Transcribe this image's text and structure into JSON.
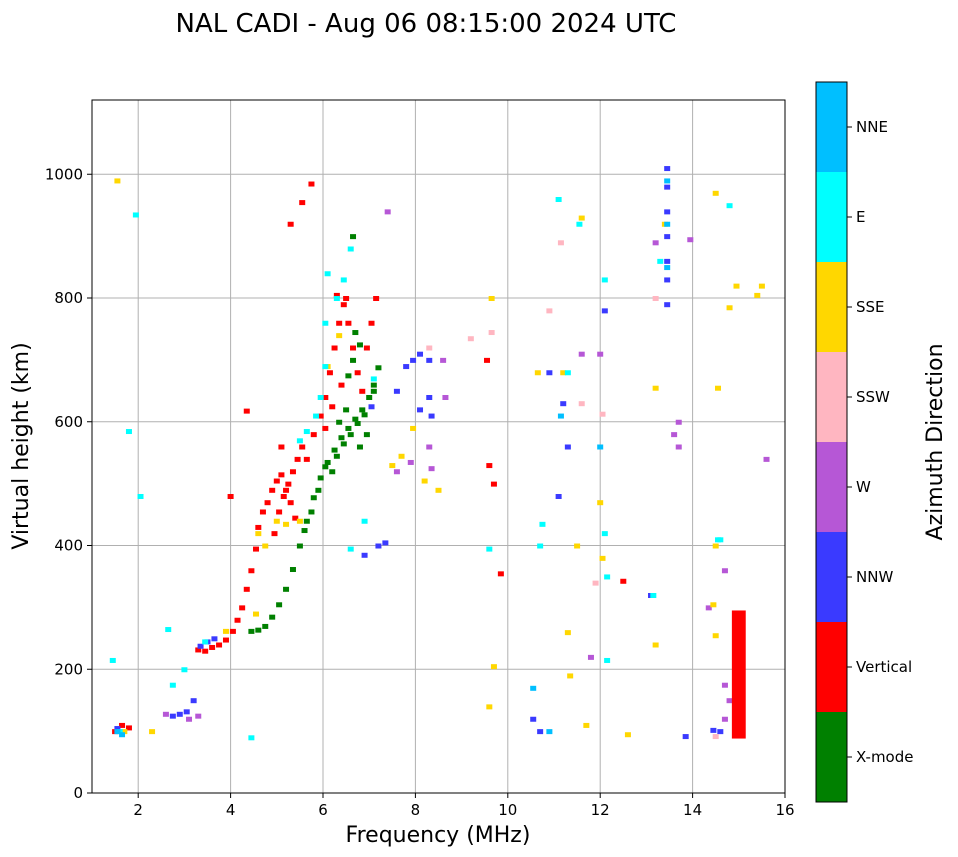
{
  "chart_data": {
    "type": "scatter",
    "title": "NAL CADI - Aug 06 08:15:00 2024 UTC",
    "xlabel": "Frequency (MHz)",
    "ylabel": "Virtual height (km)",
    "xlim": [
      1,
      16
    ],
    "ylim": [
      0,
      1120
    ],
    "xticks": [
      2,
      4,
      6,
      8,
      10,
      12,
      14,
      16
    ],
    "yticks": [
      0,
      200,
      400,
      600,
      800,
      1000
    ],
    "grid": true,
    "colorbar": {
      "label": "Azimuth Direction",
      "position": "right",
      "categories": [
        {
          "name": "X-mode",
          "color": "#008000"
        },
        {
          "name": "Vertical",
          "color": "#ff0000"
        },
        {
          "name": "NNW",
          "color": "#3a3aff"
        },
        {
          "name": "W",
          "color": "#b657d6"
        },
        {
          "name": "SSW",
          "color": "#ffb6c1"
        },
        {
          "name": "SSE",
          "color": "#ffd700"
        },
        {
          "name": "E",
          "color": "#00ffff"
        },
        {
          "name": "NNE",
          "color": "#00bfff"
        }
      ]
    },
    "series": [
      {
        "name": "X-mode",
        "points": [
          [
            4.45,
            262
          ],
          [
            4.6,
            264
          ],
          [
            4.75,
            270
          ],
          [
            4.9,
            285
          ],
          [
            5.05,
            305
          ],
          [
            5.2,
            330
          ],
          [
            5.35,
            362
          ],
          [
            5.5,
            400
          ],
          [
            5.65,
            440
          ],
          [
            5.8,
            478
          ],
          [
            5.95,
            510
          ],
          [
            6.1,
            535
          ],
          [
            6.25,
            555
          ],
          [
            6.4,
            575
          ],
          [
            6.55,
            590
          ],
          [
            6.7,
            605
          ],
          [
            6.85,
            620
          ],
          [
            7.0,
            640
          ],
          [
            7.1,
            660
          ],
          [
            6.2,
            520
          ],
          [
            6.3,
            545
          ],
          [
            6.45,
            565
          ],
          [
            6.6,
            580
          ],
          [
            6.75,
            598
          ],
          [
            6.9,
            612
          ],
          [
            6.55,
            675
          ],
          [
            6.65,
            700
          ],
          [
            6.7,
            745
          ],
          [
            6.8,
            725
          ],
          [
            6.65,
            900
          ],
          [
            7.1,
            650
          ],
          [
            7.2,
            688
          ],
          [
            5.6,
            425
          ],
          [
            5.75,
            455
          ],
          [
            5.9,
            490
          ],
          [
            6.05,
            528
          ],
          [
            6.35,
            600
          ],
          [
            6.5,
            620
          ],
          [
            6.8,
            560
          ],
          [
            6.95,
            580
          ]
        ]
      },
      {
        "name": "Vertical",
        "points": [
          [
            1.5,
            100
          ],
          [
            1.65,
            110
          ],
          [
            1.8,
            106
          ],
          [
            3.3,
            232
          ],
          [
            3.45,
            230
          ],
          [
            3.6,
            236
          ],
          [
            3.75,
            240
          ],
          [
            3.9,
            248
          ],
          [
            4.05,
            262
          ],
          [
            4.15,
            280
          ],
          [
            4.25,
            300
          ],
          [
            4.35,
            330
          ],
          [
            4.45,
            360
          ],
          [
            4.55,
            395
          ],
          [
            4.6,
            430
          ],
          [
            4.7,
            455
          ],
          [
            4.8,
            470
          ],
          [
            4.9,
            490
          ],
          [
            5.0,
            505
          ],
          [
            5.1,
            515
          ],
          [
            5.2,
            490
          ],
          [
            5.3,
            470
          ],
          [
            5.4,
            445
          ],
          [
            5.05,
            455
          ],
          [
            5.15,
            480
          ],
          [
            5.25,
            500
          ],
          [
            5.35,
            520
          ],
          [
            5.45,
            540
          ],
          [
            5.55,
            560
          ],
          [
            5.65,
            540
          ],
          [
            5.8,
            580
          ],
          [
            5.95,
            610
          ],
          [
            6.05,
            640
          ],
          [
            6.15,
            680
          ],
          [
            6.25,
            720
          ],
          [
            6.35,
            760
          ],
          [
            6.45,
            790
          ],
          [
            6.55,
            760
          ],
          [
            6.65,
            720
          ],
          [
            6.75,
            680
          ],
          [
            6.85,
            650
          ],
          [
            6.95,
            720
          ],
          [
            7.05,
            760
          ],
          [
            7.15,
            800
          ],
          [
            6.05,
            590
          ],
          [
            6.2,
            625
          ],
          [
            6.4,
            660
          ],
          [
            4.35,
            618
          ],
          [
            4.0,
            480
          ],
          [
            5.3,
            920
          ],
          [
            5.55,
            955
          ],
          [
            5.75,
            985
          ],
          [
            9.55,
            700
          ],
          [
            9.6,
            530
          ],
          [
            9.7,
            500
          ],
          [
            9.85,
            355
          ],
          [
            12.5,
            343
          ],
          [
            14.95,
            190
          ],
          [
            4.95,
            420
          ],
          [
            5.1,
            560
          ],
          [
            6.3,
            805
          ],
          [
            6.5,
            800
          ]
        ]
      },
      {
        "name": "NNW",
        "points": [
          [
            1.55,
            105
          ],
          [
            2.75,
            125
          ],
          [
            2.9,
            128
          ],
          [
            3.05,
            132
          ],
          [
            3.2,
            150
          ],
          [
            3.35,
            238
          ],
          [
            3.5,
            245
          ],
          [
            3.65,
            250
          ],
          [
            6.9,
            385
          ],
          [
            7.2,
            400
          ],
          [
            7.35,
            405
          ],
          [
            7.6,
            650
          ],
          [
            7.8,
            690
          ],
          [
            7.95,
            700
          ],
          [
            8.1,
            710
          ],
          [
            8.3,
            700
          ],
          [
            8.1,
            620
          ],
          [
            8.3,
            640
          ],
          [
            7.05,
            625
          ],
          [
            13.45,
            790
          ],
          [
            13.45,
            830
          ],
          [
            13.45,
            860
          ],
          [
            13.45,
            900
          ],
          [
            13.45,
            940
          ],
          [
            13.45,
            980
          ],
          [
            13.45,
            1010
          ],
          [
            12.1,
            780
          ],
          [
            11.2,
            630
          ],
          [
            11.3,
            560
          ],
          [
            11.1,
            480
          ],
          [
            10.55,
            120
          ],
          [
            10.7,
            100
          ],
          [
            13.85,
            92
          ],
          [
            14.45,
            102
          ],
          [
            14.6,
            100
          ],
          [
            13.1,
            320
          ],
          [
            10.9,
            680
          ],
          [
            8.35,
            610
          ]
        ]
      },
      {
        "name": "W",
        "points": [
          [
            2.6,
            128
          ],
          [
            3.1,
            120
          ],
          [
            3.3,
            125
          ],
          [
            8.6,
            700
          ],
          [
            8.65,
            640
          ],
          [
            8.3,
            560
          ],
          [
            7.6,
            520
          ],
          [
            7.9,
            535
          ],
          [
            13.7,
            600
          ],
          [
            13.7,
            560
          ],
          [
            13.95,
            895
          ],
          [
            14.35,
            300
          ],
          [
            14.7,
            360
          ],
          [
            14.7,
            175
          ],
          [
            14.8,
            150
          ],
          [
            14.7,
            120
          ],
          [
            15.6,
            540
          ],
          [
            11.8,
            220
          ],
          [
            12.0,
            710
          ],
          [
            11.6,
            710
          ],
          [
            13.6,
            580
          ],
          [
            13.2,
            890
          ],
          [
            8.35,
            525
          ],
          [
            7.4,
            940
          ]
        ]
      },
      {
        "name": "SSW",
        "points": [
          [
            9.2,
            735
          ],
          [
            9.65,
            745
          ],
          [
            8.3,
            720
          ],
          [
            12.05,
            613
          ],
          [
            11.9,
            340
          ],
          [
            14.5,
            92
          ],
          [
            13.2,
            800
          ],
          [
            11.15,
            890
          ],
          [
            10.9,
            780
          ],
          [
            11.6,
            630
          ]
        ]
      },
      {
        "name": "SSE",
        "points": [
          [
            1.55,
            990
          ],
          [
            1.7,
            100
          ],
          [
            2.3,
            100
          ],
          [
            3.9,
            262
          ],
          [
            4.55,
            290
          ],
          [
            4.6,
            420
          ],
          [
            4.75,
            400
          ],
          [
            5.0,
            440
          ],
          [
            5.2,
            435
          ],
          [
            5.5,
            440
          ],
          [
            6.1,
            690
          ],
          [
            6.35,
            740
          ],
          [
            7.5,
            530
          ],
          [
            7.7,
            545
          ],
          [
            7.95,
            590
          ],
          [
            8.2,
            505
          ],
          [
            8.5,
            490
          ],
          [
            9.6,
            140
          ],
          [
            9.7,
            205
          ],
          [
            9.65,
            800
          ],
          [
            10.65,
            680
          ],
          [
            11.3,
            260
          ],
          [
            11.35,
            190
          ],
          [
            11.5,
            400
          ],
          [
            11.7,
            110
          ],
          [
            12.0,
            470
          ],
          [
            12.05,
            380
          ],
          [
            12.6,
            95
          ],
          [
            13.2,
            655
          ],
          [
            13.2,
            240
          ],
          [
            13.4,
            920
          ],
          [
            14.45,
            305
          ],
          [
            14.5,
            255
          ],
          [
            14.5,
            400
          ],
          [
            14.55,
            655
          ],
          [
            14.5,
            970
          ],
          [
            14.8,
            785
          ],
          [
            14.95,
            820
          ],
          [
            15.4,
            805
          ],
          [
            15.5,
            820
          ],
          [
            11.6,
            930
          ],
          [
            11.2,
            680
          ]
        ]
      },
      {
        "name": "E",
        "points": [
          [
            1.45,
            215
          ],
          [
            1.6,
            100
          ],
          [
            1.8,
            585
          ],
          [
            1.95,
            935
          ],
          [
            2.05,
            480
          ],
          [
            2.65,
            265
          ],
          [
            2.75,
            175
          ],
          [
            3.0,
            200
          ],
          [
            3.45,
            245
          ],
          [
            4.45,
            90
          ],
          [
            5.5,
            570
          ],
          [
            5.65,
            585
          ],
          [
            5.85,
            610
          ],
          [
            5.95,
            640
          ],
          [
            6.05,
            690
          ],
          [
            6.05,
            760
          ],
          [
            6.1,
            840
          ],
          [
            6.3,
            800
          ],
          [
            6.45,
            830
          ],
          [
            6.6,
            880
          ],
          [
            6.6,
            395
          ],
          [
            6.9,
            440
          ],
          [
            7.1,
            670
          ],
          [
            9.6,
            395
          ],
          [
            10.7,
            400
          ],
          [
            10.75,
            435
          ],
          [
            11.1,
            960
          ],
          [
            11.55,
            920
          ],
          [
            12.1,
            830
          ],
          [
            12.1,
            420
          ],
          [
            12.15,
            350
          ],
          [
            12.15,
            215
          ],
          [
            13.15,
            320
          ],
          [
            13.3,
            860
          ],
          [
            14.55,
            410
          ],
          [
            14.6,
            410
          ],
          [
            14.8,
            950
          ],
          [
            11.3,
            680
          ]
        ]
      },
      {
        "name": "NNE",
        "points": [
          [
            1.55,
            100
          ],
          [
            1.65,
            95
          ],
          [
            13.45,
            990
          ],
          [
            13.45,
            920
          ],
          [
            13.45,
            850
          ],
          [
            10.55,
            170
          ],
          [
            10.9,
            100
          ],
          [
            12.0,
            560
          ],
          [
            11.15,
            610
          ]
        ]
      }
    ],
    "bar_segments": [
      {
        "name": "Vertical",
        "frequency_range": [
          14.85,
          15.15
        ],
        "height_range": [
          88,
          295
        ]
      }
    ]
  }
}
